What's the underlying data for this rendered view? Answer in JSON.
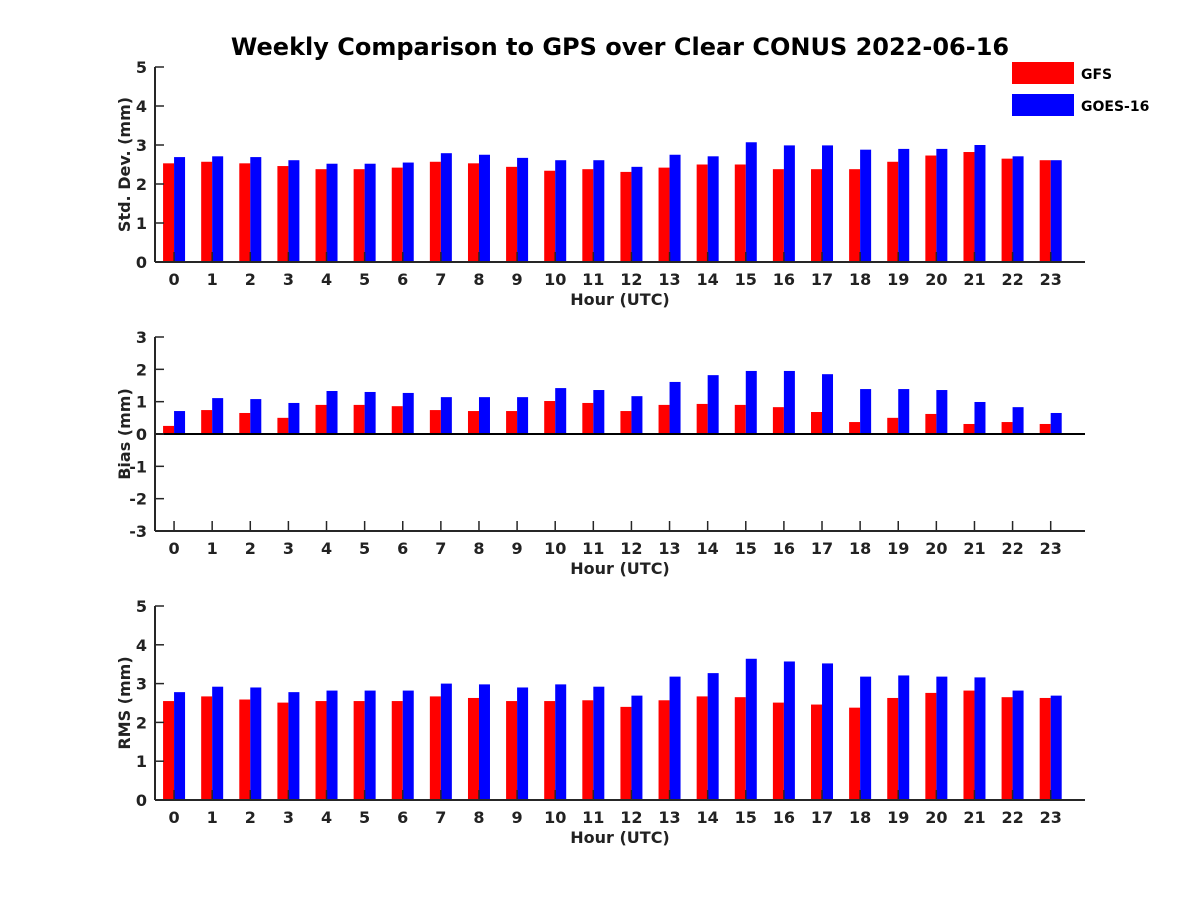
{
  "chart_data": {
    "type": "bar",
    "title": "Weekly Comparison to GPS over Clear CONUS 2022-06-16",
    "legend": {
      "placement": "top-right",
      "entries": [
        {
          "name": "GFS",
          "color": "#ff0000"
        },
        {
          "name": "GOES-16",
          "color": "#0000ff"
        }
      ]
    },
    "categories": [
      "0",
      "1",
      "2",
      "3",
      "4",
      "5",
      "6",
      "7",
      "8",
      "9",
      "10",
      "11",
      "12",
      "13",
      "14",
      "15",
      "16",
      "17",
      "18",
      "19",
      "20",
      "21",
      "22",
      "23"
    ],
    "panels": [
      {
        "id": "stddev",
        "xlabel": "Hour (UTC)",
        "ylabel": "Std. Dev. (mm)",
        "ylim": [
          0,
          5
        ],
        "yticks": [
          0,
          1,
          2,
          3,
          4,
          5
        ],
        "series": [
          {
            "name": "GFS",
            "color": "#ff0000",
            "values": [
              2.53,
              2.57,
              2.53,
              2.46,
              2.38,
              2.38,
              2.42,
              2.57,
              2.53,
              2.44,
              2.34,
              2.38,
              2.31,
              2.42,
              2.5,
              2.5,
              2.38,
              2.38,
              2.38,
              2.57,
              2.73,
              2.82,
              2.65,
              2.61
            ]
          },
          {
            "name": "GOES-16",
            "color": "#0000ff",
            "values": [
              2.69,
              2.71,
              2.69,
              2.61,
              2.52,
              2.52,
              2.55,
              2.79,
              2.75,
              2.67,
              2.61,
              2.61,
              2.44,
              2.75,
              2.71,
              3.07,
              2.99,
              2.99,
              2.88,
              2.9,
              2.9,
              3.0,
              2.71,
              2.61
            ]
          }
        ]
      },
      {
        "id": "bias",
        "xlabel": "Hour (UTC)",
        "ylabel": "Bias (mm)",
        "ylim": [
          -3,
          3
        ],
        "yticks": [
          -3,
          -2,
          -1,
          0,
          1,
          2,
          3
        ],
        "series": [
          {
            "name": "GFS",
            "color": "#ff0000",
            "values": [
              0.25,
              0.74,
              0.65,
              0.5,
              0.9,
              0.9,
              0.86,
              0.74,
              0.71,
              0.71,
              1.02,
              0.96,
              0.71,
              0.9,
              0.93,
              0.9,
              0.83,
              0.68,
              0.37,
              0.5,
              0.62,
              0.31,
              0.37,
              0.31
            ]
          },
          {
            "name": "GOES-16",
            "color": "#0000ff",
            "values": [
              0.71,
              1.11,
              1.08,
              0.96,
              1.33,
              1.3,
              1.27,
              1.14,
              1.14,
              1.14,
              1.42,
              1.36,
              1.17,
              1.61,
              1.82,
              1.95,
              1.95,
              1.85,
              1.39,
              1.39,
              1.36,
              0.99,
              0.83,
              0.65
            ]
          }
        ]
      },
      {
        "id": "rms",
        "xlabel": "Hour (UTC)",
        "ylabel": "RMS (mm)",
        "ylim": [
          0,
          5
        ],
        "yticks": [
          0,
          1,
          2,
          3,
          4,
          5
        ],
        "series": [
          {
            "name": "GFS",
            "color": "#ff0000",
            "values": [
              2.55,
              2.67,
              2.59,
              2.51,
              2.55,
              2.55,
              2.55,
              2.67,
              2.63,
              2.55,
              2.55,
              2.57,
              2.4,
              2.57,
              2.67,
              2.65,
              2.51,
              2.46,
              2.38,
              2.63,
              2.76,
              2.82,
              2.65,
              2.63
            ]
          },
          {
            "name": "GOES-16",
            "color": "#0000ff",
            "values": [
              2.78,
              2.92,
              2.9,
              2.78,
              2.82,
              2.82,
              2.82,
              3.0,
              2.98,
              2.9,
              2.98,
              2.92,
              2.69,
              3.18,
              3.27,
              3.64,
              3.57,
              3.52,
              3.18,
              3.21,
              3.18,
              3.16,
              2.82,
              2.69
            ]
          }
        ]
      }
    ]
  }
}
